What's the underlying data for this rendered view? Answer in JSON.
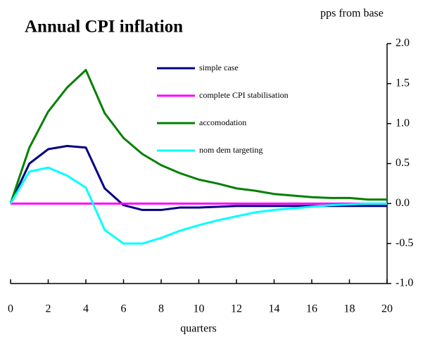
{
  "chart_data": {
    "type": "line",
    "title": "Annual CPI inflation",
    "y_axis_label": "pps from base",
    "x_axis_label": "quarters",
    "x": [
      0,
      1,
      2,
      3,
      4,
      5,
      6,
      7,
      8,
      9,
      10,
      11,
      12,
      13,
      14,
      15,
      16,
      17,
      18,
      19,
      20
    ],
    "xlim": [
      0,
      20
    ],
    "xticks": [
      0,
      2,
      4,
      6,
      8,
      10,
      12,
      14,
      16,
      18,
      20
    ],
    "ylim": [
      -1,
      2
    ],
    "yticks": [
      {
        "value": 2,
        "label": "2.0"
      },
      {
        "value": 1.5,
        "label": "1.5"
      },
      {
        "value": 1,
        "label": "1.0"
      },
      {
        "value": 0.5,
        "label": "0.5"
      },
      {
        "value": 0,
        "label": "0.0"
      },
      {
        "value": -0.5,
        "label": "-0.5"
      },
      {
        "value": -1,
        "label": "-1.0"
      }
    ],
    "legend": "top",
    "series": [
      {
        "name": "simple case",
        "color": "#000080",
        "values": [
          0,
          0.5,
          0.68,
          0.72,
          0.7,
          0.19,
          -0.02,
          -0.08,
          -0.08,
          -0.05,
          -0.05,
          -0.04,
          -0.03,
          -0.03,
          -0.03,
          -0.03,
          -0.03,
          -0.03,
          -0.03,
          -0.03,
          -0.03
        ]
      },
      {
        "name": "complete CPI stabilisation",
        "color": "#ff00ff",
        "values": [
          0,
          0,
          0,
          0,
          0,
          0,
          0,
          0,
          0,
          0,
          0,
          0,
          0,
          0,
          0,
          0,
          0,
          0,
          0,
          0,
          0
        ]
      },
      {
        "name": "accomodation",
        "color": "#008000",
        "values": [
          0,
          0.7,
          1.15,
          1.45,
          1.67,
          1.13,
          0.82,
          0.62,
          0.48,
          0.38,
          0.3,
          0.25,
          0.19,
          0.16,
          0.12,
          0.1,
          0.08,
          0.07,
          0.07,
          0.05,
          0.05
        ]
      },
      {
        "name": "nom dem targeting",
        "color": "#00ffff",
        "values": [
          0,
          0.4,
          0.45,
          0.35,
          0.2,
          -0.33,
          -0.5,
          -0.5,
          -0.43,
          -0.34,
          -0.27,
          -0.21,
          -0.16,
          -0.11,
          -0.08,
          -0.06,
          -0.04,
          -0.02,
          -0.01,
          0,
          0
        ]
      }
    ]
  }
}
